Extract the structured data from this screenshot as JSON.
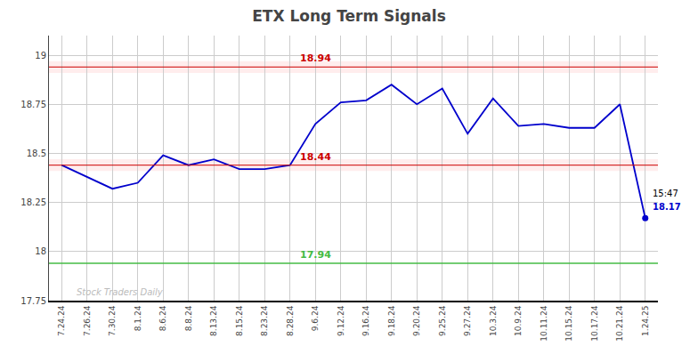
{
  "chart_data": {
    "type": "line",
    "title": "ETX Long Term Signals",
    "categories": [
      "7.24.24",
      "7.26.24",
      "7.30.24",
      "8.1.24",
      "8.6.24",
      "8.8.24",
      "8.13.24",
      "8.15.24",
      "8.23.24",
      "8.28.24",
      "9.6.24",
      "9.12.24",
      "9.16.24",
      "9.18.24",
      "9.20.24",
      "9.25.24",
      "9.27.24",
      "10.3.24",
      "10.9.24",
      "10.11.24",
      "10.15.24",
      "10.17.24",
      "10.21.24",
      "1.24.25"
    ],
    "values": [
      18.44,
      18.38,
      18.32,
      18.35,
      18.49,
      18.44,
      18.47,
      18.42,
      18.42,
      18.44,
      18.65,
      18.76,
      18.77,
      18.85,
      18.75,
      18.83,
      18.6,
      18.78,
      18.64,
      18.65,
      18.63,
      18.63,
      18.75,
      18.17
    ],
    "color": "#0000cc",
    "ylim": [
      17.75,
      19.1
    ],
    "yticks": [
      17.75,
      18.0,
      18.25,
      18.5,
      18.75,
      19.0
    ],
    "grid": true,
    "hlines": [
      {
        "value": 18.94,
        "color": "#cc0000",
        "band": true
      },
      {
        "value": 18.44,
        "color": "#cc0000",
        "band": true
      },
      {
        "value": 17.94,
        "color": "#44bb44",
        "band": false
      }
    ],
    "band_color": "#ffcccc",
    "last_time": "15:47",
    "last_price": 18.17,
    "last_label_color": "#0000cc",
    "watermark": "Stock Traders Daily",
    "watermark_color": "#bbbbbb"
  }
}
